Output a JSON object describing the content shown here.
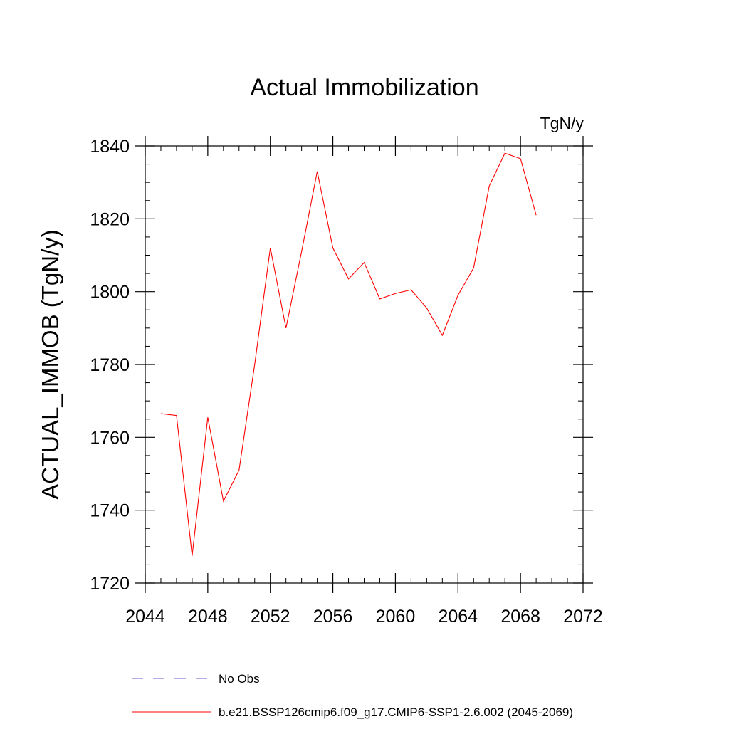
{
  "chart_data": {
    "type": "line",
    "title": "Actual Immobilization",
    "units_label": "TgN/y",
    "xlabel": "",
    "ylabel": "ACTUAL_IMMOB  (TgN/y)",
    "xlim": [
      2044,
      2072
    ],
    "ylim": [
      1720,
      1840
    ],
    "x_ticks": [
      2044,
      2048,
      2052,
      2056,
      2060,
      2064,
      2068,
      2072
    ],
    "y_ticks": [
      1720,
      1740,
      1760,
      1780,
      1800,
      1820,
      1840
    ],
    "x_minor_step": 1,
    "y_minor_step": 5,
    "grid": false,
    "legend_position": "bottom",
    "series": [
      {
        "name": "b.e21.BSSP126cmip6.f09_g17.CMIP6-SSP1-2.6.002 (2045-2069)",
        "color": "#ff0000",
        "dash": "solid",
        "x": [
          2045,
          2046,
          2047,
          2048,
          2049,
          2050,
          2051,
          2052,
          2053,
          2054,
          2055,
          2056,
          2057,
          2058,
          2059,
          2060,
          2061,
          2062,
          2063,
          2064,
          2065,
          2066,
          2067,
          2068,
          2069
        ],
        "values": [
          1766.5,
          1766.0,
          1727.5,
          1765.5,
          1742.5,
          1751.0,
          1780.0,
          1812.0,
          1790.0,
          1811.0,
          1833.0,
          1812.0,
          1803.5,
          1808.0,
          1798.0,
          1799.5,
          1800.5,
          1795.5,
          1788.0,
          1799.0,
          1806.5,
          1829.0,
          1838.0,
          1836.5,
          1821.0
        ]
      }
    ],
    "legend": [
      {
        "label": "No Obs",
        "color": "#6a5acd",
        "dash": "dashed"
      },
      {
        "label": "b.e21.BSSP126cmip6.f09_g17.CMIP6-SSP1-2.6.002 (2045-2069)",
        "color": "#ff0000",
        "dash": "solid"
      }
    ]
  }
}
